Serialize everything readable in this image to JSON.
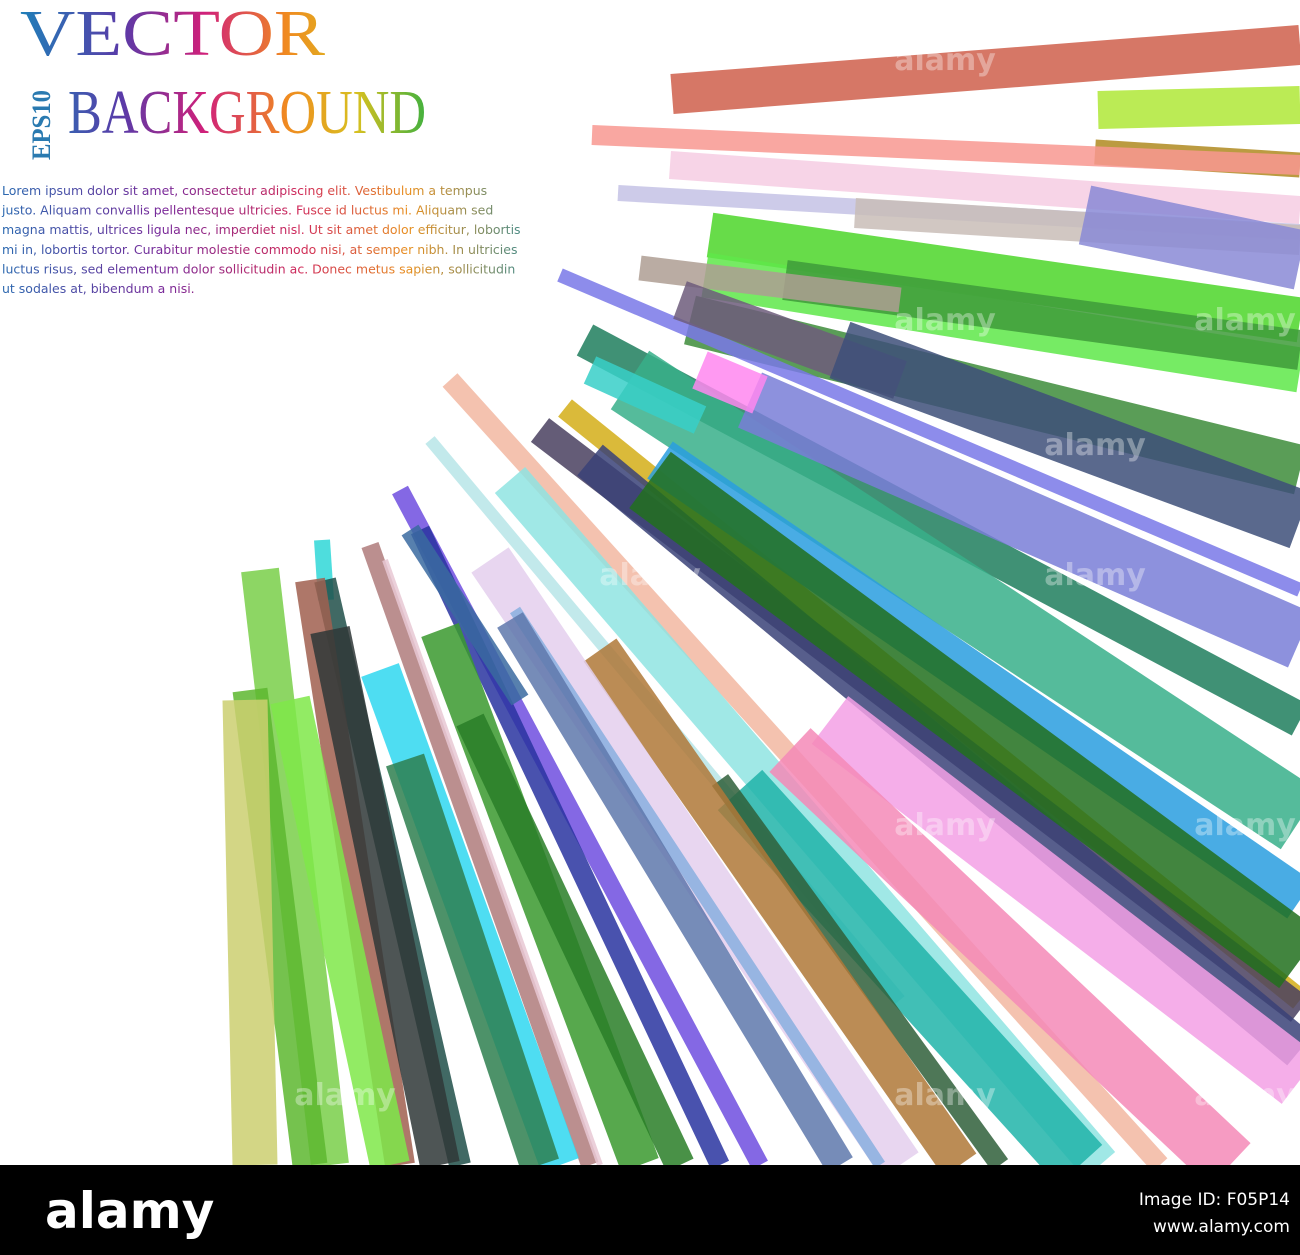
{
  "header": {
    "title": "VECTOR",
    "subtitle": "BACKGROUND",
    "badge": "EPS10"
  },
  "body": {
    "lines": [
      "Lorem ipsum dolor sit amet, consectetur adipiscing elit. Vestibulum a tempus",
      "justo. Aliquam convallis pellentesque ultricies. Fusce id luctus mi. Aliquam sed",
      "magna mattis, ultrices ligula nec, imperdiet nisl. Ut sit amet dolor efficitur, lobortis",
      "mi in, lobortis tortor. Curabitur molestie commodo nisi, at semper nibh. In ultricies",
      "luctus risus, sed elementum dolor sollicitudin ac. Donec metus sapien, sollicitudin",
      "ut sodales at, bibendum a nisi."
    ]
  },
  "watermark": "alamy",
  "footer": {
    "logo": "alamy",
    "image_id": "Image ID: F05P14",
    "url": "www.alamy.com"
  }
}
